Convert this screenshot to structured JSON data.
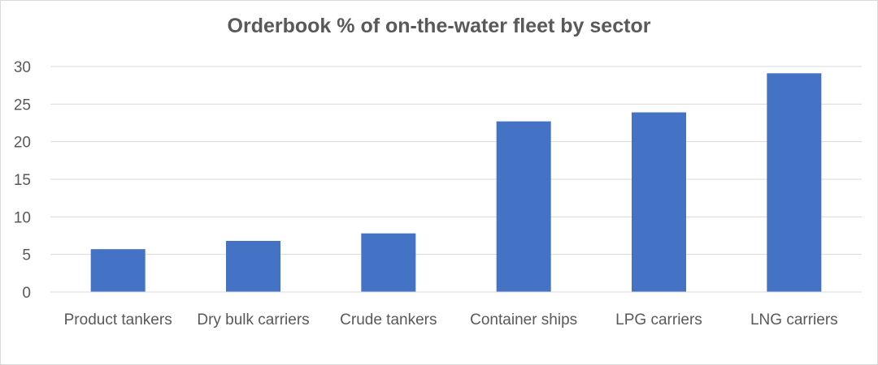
{
  "chart_data": {
    "type": "bar",
    "title": "Orderbook % of on-the-water fleet by sector",
    "xlabel": "",
    "ylabel": "",
    "categories": [
      "Product tankers",
      "Dry bulk carriers",
      "Crude tankers",
      "Container ships",
      "LPG carriers",
      "LNG carriers"
    ],
    "values": [
      5.7,
      6.8,
      7.8,
      22.7,
      23.9,
      29.1
    ],
    "ylim": [
      0,
      30
    ],
    "yticks": [
      "0",
      "5",
      "10",
      "15",
      "20",
      "25",
      "30"
    ],
    "grid": true,
    "legend": "none",
    "bar_color": "#4472c4",
    "grid_color": "#d9d9d9",
    "text_color": "#595959"
  }
}
